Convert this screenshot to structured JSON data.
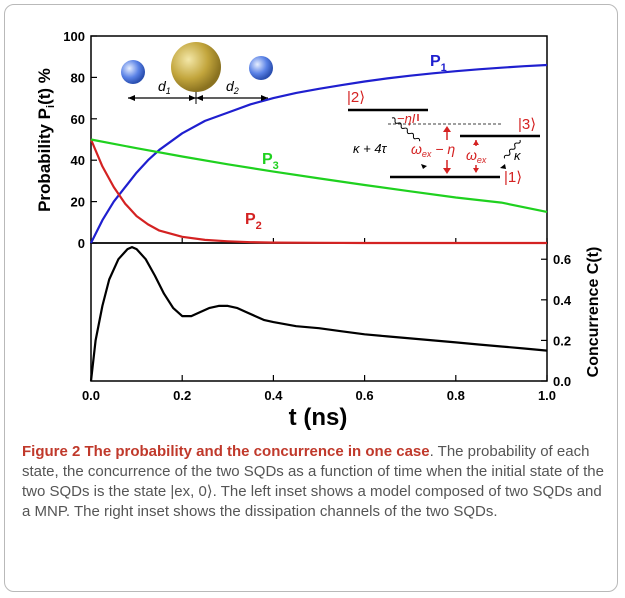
{
  "colors": {
    "p1": "#1f1fcf",
    "p2": "#d42222",
    "p3": "#1fd11f",
    "concurrence": "#000000",
    "caption_title": "#c0392b",
    "caption_text": "#555555"
  },
  "chart_data": [
    {
      "type": "line",
      "panel": "top",
      "ylabel": "Probability P_i(t) %",
      "xlim": [
        0,
        1.0
      ],
      "ylim": [
        0,
        100
      ],
      "y_ticks": [
        0,
        20,
        40,
        60,
        80,
        100
      ],
      "x_ticks": [
        0.0,
        0.2,
        0.4,
        0.6,
        0.8,
        1.0
      ],
      "series": [
        {
          "name": "P1",
          "color": "#1f1fcf",
          "x": [
            0,
            0.025,
            0.05,
            0.075,
            0.1,
            0.125,
            0.15,
            0.2,
            0.25,
            0.3,
            0.35,
            0.4,
            0.45,
            0.5,
            0.55,
            0.6,
            0.65,
            0.7,
            0.75,
            0.8,
            0.85,
            0.9,
            0.95,
            1.0
          ],
          "y": [
            0,
            11,
            20,
            27,
            34,
            40,
            45,
            53,
            59,
            63,
            67,
            70,
            72.5,
            74.5,
            76.3,
            78,
            79.5,
            80.8,
            82,
            83,
            83.9,
            84.7,
            85.4,
            86
          ]
        },
        {
          "name": "P2",
          "color": "#d42222",
          "x": [
            0,
            0.025,
            0.05,
            0.075,
            0.1,
            0.125,
            0.15,
            0.2,
            0.25,
            0.3,
            0.35,
            0.4,
            0.5,
            0.6,
            0.7,
            0.8,
            0.9,
            1.0
          ],
          "y": [
            50,
            37,
            27,
            19,
            13,
            9,
            6,
            3,
            1.5,
            0.8,
            0.4,
            0.2,
            0.1,
            0,
            0,
            0,
            0,
            0
          ]
        },
        {
          "name": "P3",
          "color": "#1fd11f",
          "x": [
            0,
            0.1,
            0.2,
            0.3,
            0.4,
            0.5,
            0.6,
            0.7,
            0.8,
            0.9,
            1.0
          ],
          "y": [
            50,
            45.8,
            41.8,
            38,
            34.5,
            31.2,
            28,
            25,
            22,
            19.5,
            15
          ]
        }
      ]
    },
    {
      "type": "line",
      "panel": "bottom",
      "xlabel": "t (ns)",
      "ylabel": "Concurrence C(t)",
      "xlim": [
        0,
        1.0
      ],
      "ylim": [
        0,
        0.68
      ],
      "y_ticks": [
        0.0,
        0.2,
        0.4,
        0.6
      ],
      "x_ticks": [
        0.0,
        0.2,
        0.4,
        0.6,
        0.8,
        1.0
      ],
      "series": [
        {
          "name": "C(t)",
          "color": "#000000",
          "x": [
            0,
            0.01,
            0.025,
            0.04,
            0.06,
            0.08,
            0.09,
            0.1,
            0.12,
            0.14,
            0.16,
            0.18,
            0.2,
            0.22,
            0.24,
            0.26,
            0.28,
            0.3,
            0.32,
            0.34,
            0.36,
            0.38,
            0.4,
            0.45,
            0.5,
            0.55,
            0.6,
            0.65,
            0.7,
            0.75,
            0.8,
            0.85,
            0.9,
            0.95,
            1.0
          ],
          "y": [
            0,
            0.2,
            0.37,
            0.5,
            0.6,
            0.65,
            0.66,
            0.65,
            0.6,
            0.52,
            0.43,
            0.36,
            0.32,
            0.32,
            0.34,
            0.36,
            0.37,
            0.37,
            0.36,
            0.34,
            0.32,
            0.3,
            0.29,
            0.27,
            0.26,
            0.245,
            0.23,
            0.22,
            0.21,
            0.2,
            0.19,
            0.18,
            0.17,
            0.16,
            0.15
          ]
        }
      ]
    }
  ],
  "labels": {
    "p1": "P",
    "p1_sub": "1",
    "p2": "P",
    "p2_sub": "2",
    "p3": "P",
    "p3_sub": "3"
  },
  "inset_left": {
    "d1": "d",
    "d1_sub": "1",
    "d2": "d",
    "d2_sub": "2"
  },
  "inset_right": {
    "state2": "|2⟩",
    "state3": "|3⟩",
    "state1": "|1⟩",
    "shift": "−ηI",
    "gamma_left": "κ + 4τ",
    "omega_eta": "ω",
    "omega_eta_sub": "ex",
    "omega_eta_tail": " − η",
    "omega": "ω",
    "omega_sub": "ex",
    "kappa": "κ"
  },
  "caption": {
    "title": "Figure 2 The probability and the concurrence in one case",
    "text": ". The probability of each state, the concurrence of the two SQDs as a function of time when the initial state of the two SQDs is the state |ex, 0⟩. The left inset shows a model composed of two SQDs and a MNP. The right inset shows the dissipation channels of the two SQDs."
  }
}
